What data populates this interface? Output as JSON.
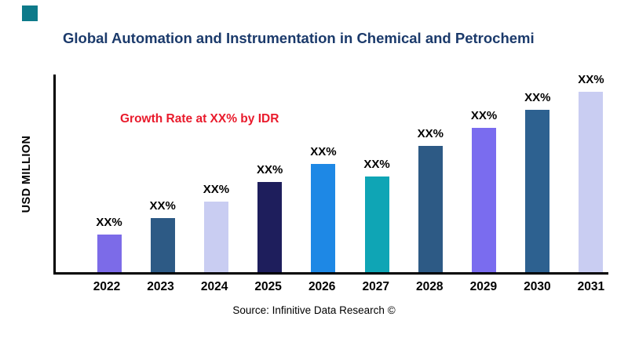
{
  "page": {
    "logo_color": "#0d7a8a"
  },
  "chart_data": {
    "type": "bar",
    "title": "Global Automation and Instrumentation in Chemical and Petrochemi",
    "title_color": "#1b3a6b",
    "ylabel": "USD MILLION",
    "xlabel": "",
    "categories": [
      "2022",
      "2023",
      "2024",
      "2025",
      "2026",
      "2027",
      "2028",
      "2029",
      "2030",
      "2031"
    ],
    "values": [
      21,
      30,
      39,
      50,
      60,
      53,
      70,
      80,
      90,
      100
    ],
    "values_unit": "percent of tallest bar (estimated; numeric axis not labeled)",
    "bar_labels": [
      "XX%",
      "XX%",
      "XX%",
      "XX%",
      "XX%",
      "XX%",
      "XX%",
      "XX%",
      "XX%",
      "XX%"
    ],
    "bar_colors": [
      "#7c6be8",
      "#2d5a85",
      "#c9cdf2",
      "#1e1e5c",
      "#1e88e5",
      "#0fa5b5",
      "#2d5a85",
      "#7a6cef",
      "#2d6190",
      "#c9cdf2"
    ],
    "annotation": {
      "text": "Growth Rate at XX% by IDR",
      "color": "#e91b2c"
    },
    "grid": false,
    "legend": false,
    "source": "Source: Infinitive Data Research ©"
  }
}
